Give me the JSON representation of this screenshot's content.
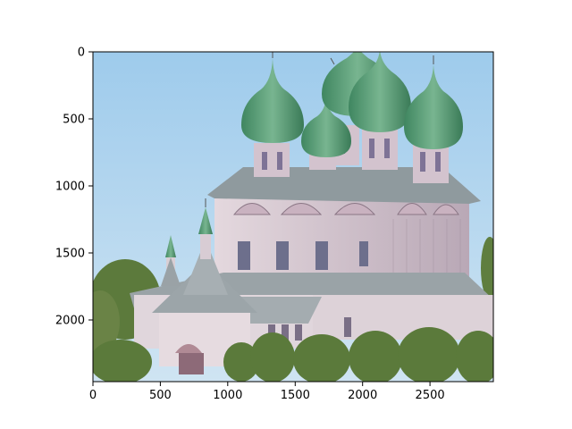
{
  "figure": {
    "image_subject": "russian-orthodox-church-with-green-onion-domes",
    "axes": {
      "x_ticks": [
        "0",
        "500",
        "1000",
        "1500",
        "2000",
        "2500"
      ],
      "y_ticks": [
        "0",
        "500",
        "1000",
        "1500",
        "2000"
      ],
      "x_range": [
        0,
        2970
      ],
      "y_range": [
        0,
        2460
      ]
    },
    "colors": {
      "sky": "#a9d4ee",
      "dome_green": "#4f9a70",
      "wall": "#d9cbd3",
      "roof": "#8f9a9e",
      "trees": "#5f7e3f"
    }
  }
}
